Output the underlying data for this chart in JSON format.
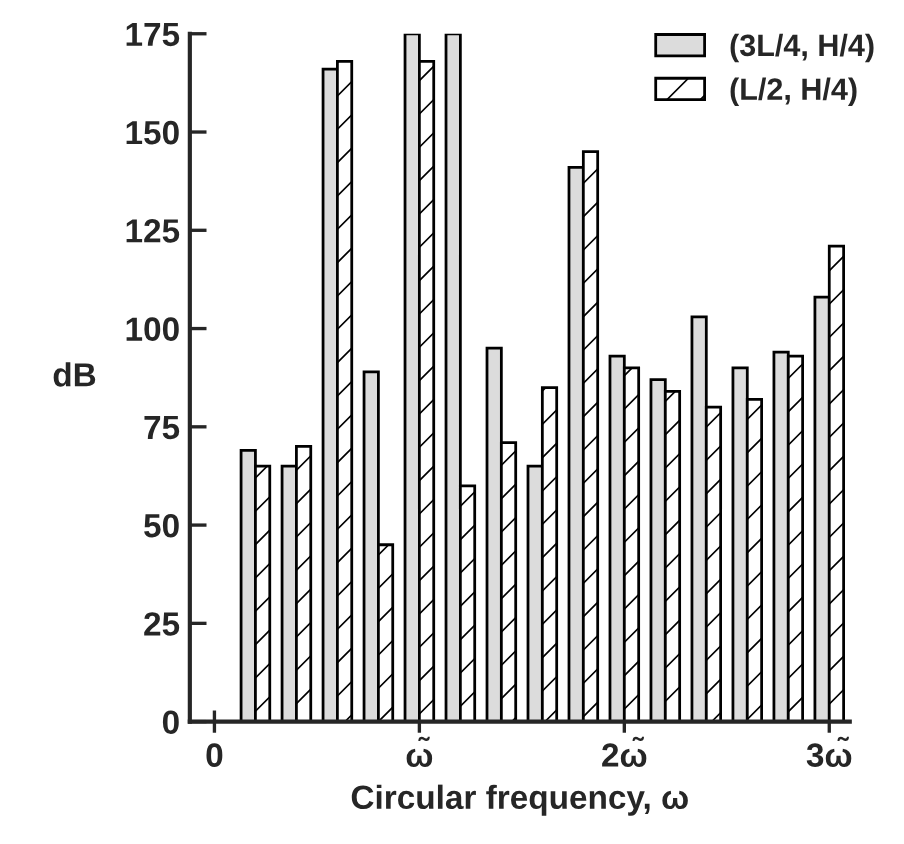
{
  "chart_data": {
    "type": "bar",
    "xlabel": "Circular frequency, ω",
    "ylabel": "dB",
    "x": [
      0.2,
      0.4,
      0.6,
      0.8,
      1.0,
      1.2,
      1.4,
      1.6,
      1.8,
      2.0,
      2.2,
      2.4,
      2.6,
      2.8,
      3.0
    ],
    "series": [
      {
        "name": "(3L/4, H/4)",
        "color": "#dcdcdc",
        "values": [
          69,
          65,
          166,
          89,
          175,
          175,
          95,
          65,
          141,
          93,
          87,
          103,
          90,
          94,
          108
        ]
      },
      {
        "name": "(L/2, H/4)",
        "color": "#000000",
        "values": [
          65,
          70,
          168,
          45,
          168,
          60,
          71,
          85,
          145,
          90,
          84,
          80,
          82,
          93,
          121
        ]
      }
    ],
    "xlim": [
      -0.12,
      3.1
    ],
    "xticks": [
      0,
      {
        "value": 1,
        "label": "ω̃"
      },
      {
        "value": 2,
        "label": "2ω̃"
      },
      {
        "value": 3,
        "label": "3ω̃"
      }
    ],
    "ylim": [
      0,
      175
    ],
    "yticks": [
      0,
      25,
      50,
      75,
      100,
      125,
      150,
      175
    ],
    "grid": false,
    "legend": "top right"
  }
}
